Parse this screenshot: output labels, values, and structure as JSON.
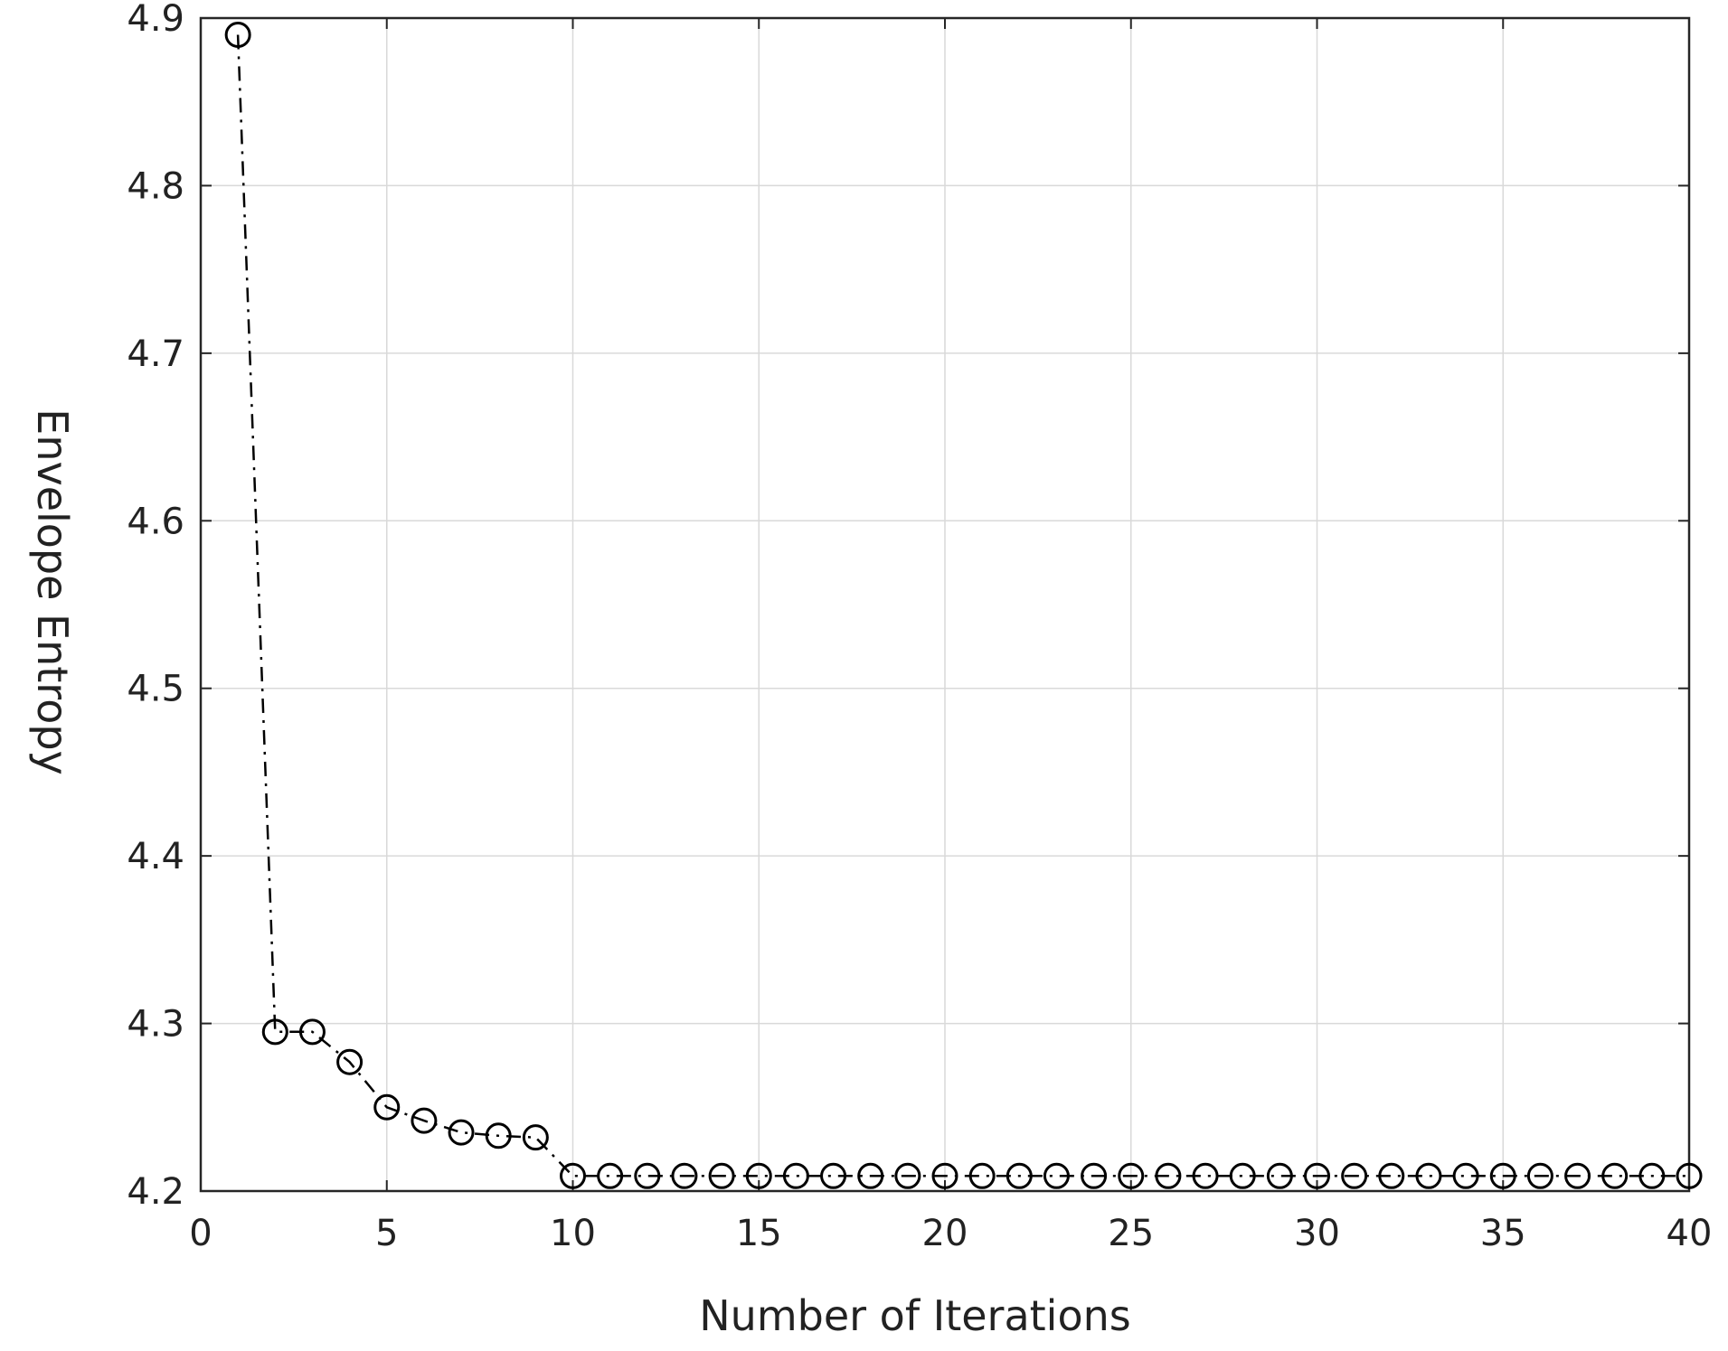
{
  "chart_data": {
    "type": "line",
    "title": "",
    "xlabel": "Number of Iterations",
    "ylabel": "Envelope Entropy",
    "xlim": [
      0,
      40
    ],
    "ylim": [
      4.2,
      4.9
    ],
    "xticks": [
      0,
      5,
      10,
      15,
      20,
      25,
      30,
      35,
      40
    ],
    "yticks": [
      4.2,
      4.3,
      4.4,
      4.5,
      4.6,
      4.7,
      4.8,
      4.9
    ],
    "grid": true,
    "legend": "none",
    "series": [
      {
        "marker": "open-circle",
        "line_style": "dash-dot",
        "color": "#000000",
        "x": [
          1,
          2,
          3,
          4,
          5,
          6,
          7,
          8,
          9,
          10,
          11,
          12,
          13,
          14,
          15,
          16,
          17,
          18,
          19,
          20,
          21,
          22,
          23,
          24,
          25,
          26,
          27,
          28,
          29,
          30,
          31,
          32,
          33,
          34,
          35,
          36,
          37,
          38,
          39,
          40
        ],
        "values": [
          4.89,
          4.295,
          4.295,
          4.277,
          4.25,
          4.242,
          4.235,
          4.233,
          4.232,
          4.209,
          4.209,
          4.209,
          4.209,
          4.209,
          4.209,
          4.209,
          4.209,
          4.209,
          4.209,
          4.209,
          4.209,
          4.209,
          4.209,
          4.209,
          4.209,
          4.209,
          4.209,
          4.209,
          4.209,
          4.209,
          4.209,
          4.209,
          4.209,
          4.209,
          4.209,
          4.209,
          4.209,
          4.209,
          4.209,
          4.209
        ]
      }
    ]
  }
}
